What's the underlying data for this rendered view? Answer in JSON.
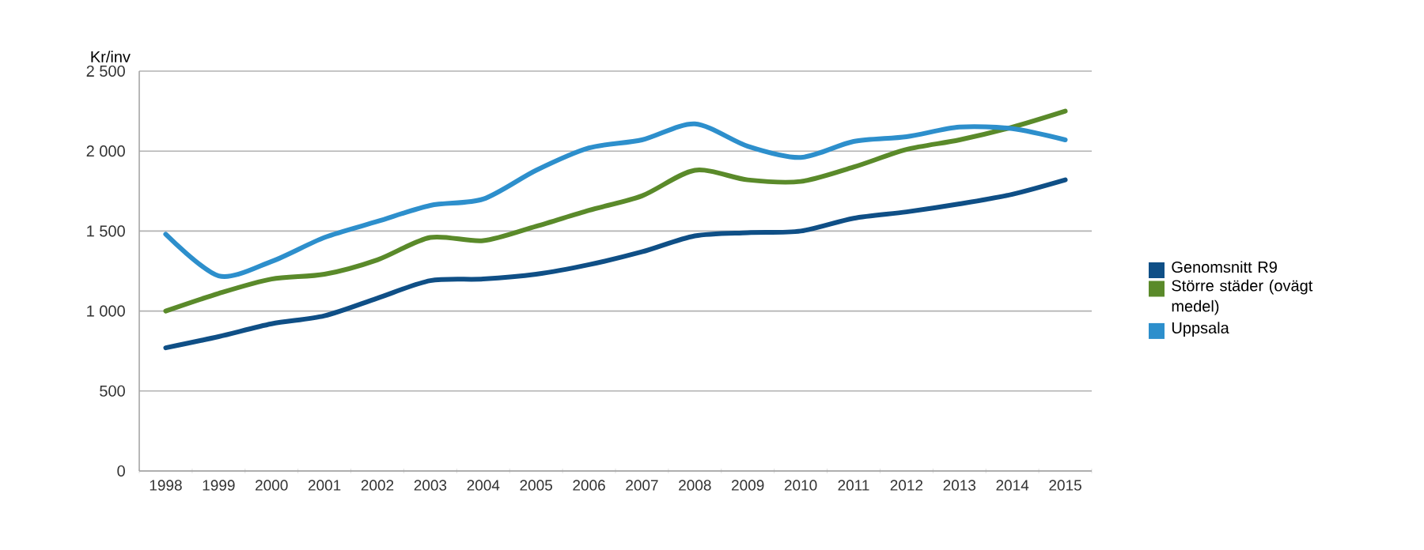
{
  "chart_data": {
    "type": "line",
    "ylabel": "Kr/inv",
    "categories": [
      "1998",
      "1999",
      "2000",
      "2001",
      "2002",
      "2003",
      "2004",
      "2005",
      "2006",
      "2007",
      "2008",
      "2009",
      "2010",
      "2011",
      "2012",
      "2013",
      "2014",
      "2015"
    ],
    "series": [
      {
        "name": "Genomsnitt R9",
        "color": "#0f4f86",
        "values": [
          770,
          840,
          920,
          970,
          1080,
          1190,
          1200,
          1230,
          1290,
          1370,
          1470,
          1490,
          1500,
          1580,
          1620,
          1670,
          1730,
          1820
        ]
      },
      {
        "name": "Större städer (ovägt medel)",
        "color": "#5a8a2a",
        "values": [
          1000,
          1110,
          1200,
          1230,
          1320,
          1460,
          1440,
          1530,
          1630,
          1720,
          1880,
          1820,
          1810,
          1900,
          2010,
          2070,
          2150,
          2250
        ]
      },
      {
        "name": "Uppsala",
        "color": "#2d8fcc",
        "values": [
          1480,
          1220,
          1310,
          1460,
          1560,
          1660,
          1700,
          1880,
          2020,
          2070,
          2170,
          2030,
          1960,
          2060,
          2090,
          2150,
          2140,
          2070
        ]
      }
    ],
    "ylim": [
      0,
      2500
    ],
    "yticks": [
      0,
      500,
      {
        "value": 1000,
        "label": "1 000"
      },
      {
        "value": 1500,
        "label": "1 500"
      },
      {
        "value": 2000,
        "label": "2 000"
      },
      {
        "value": 2500,
        "label": "2 500"
      }
    ],
    "grid": "y",
    "legend": "right",
    "line_style": "solid",
    "marker": "none"
  }
}
